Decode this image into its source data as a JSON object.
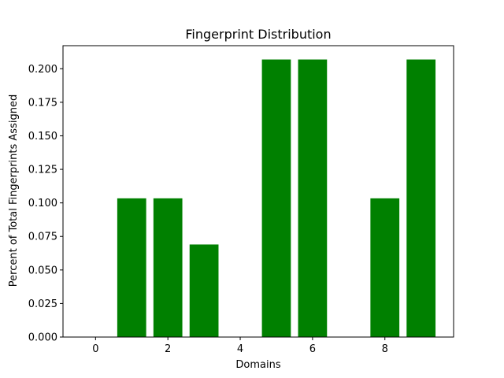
{
  "chart_data": {
    "type": "bar",
    "title": "Fingerprint Distribution",
    "xlabel": "Domains",
    "ylabel": "Percent of Total Fingerprints Assigned",
    "x": [
      0,
      1,
      2,
      3,
      4,
      5,
      6,
      7,
      8,
      9
    ],
    "values": [
      0.0,
      0.1034,
      0.1034,
      0.069,
      0.0,
      0.2069,
      0.2069,
      0.0,
      0.1034,
      0.2069
    ],
    "xlim": [
      -0.9,
      9.9
    ],
    "ylim": [
      0,
      0.2172
    ],
    "xticks": [
      0,
      2,
      4,
      6,
      8
    ],
    "xtick_labels": [
      "0",
      "2",
      "4",
      "6",
      "8"
    ],
    "yticks": [
      0.0,
      0.025,
      0.05,
      0.075,
      0.1,
      0.125,
      0.15,
      0.175,
      0.2
    ],
    "ytick_labels": [
      "0.000",
      "0.025",
      "0.050",
      "0.075",
      "0.100",
      "0.125",
      "0.150",
      "0.175",
      "0.200"
    ],
    "bar_color": "#008000",
    "grid": false,
    "legend": false
  }
}
